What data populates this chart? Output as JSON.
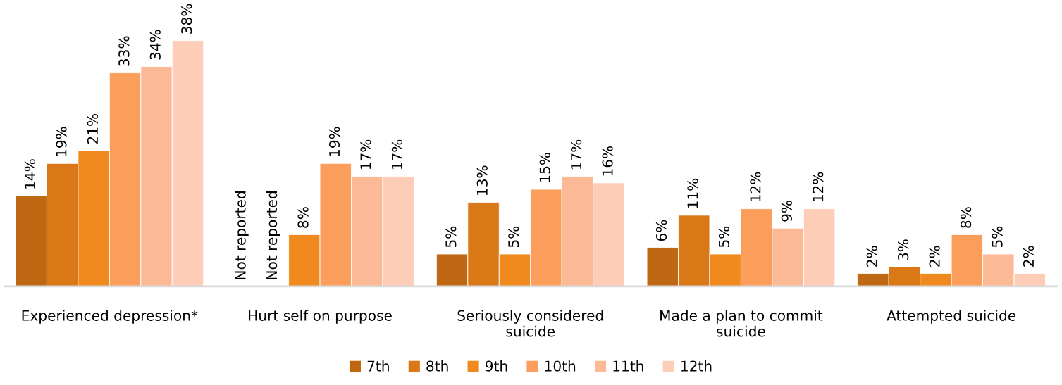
{
  "chart_data": {
    "type": "bar",
    "categories": [
      "Experienced depression*",
      "Hurt self on purpose",
      "Seriously considered\nsuicide",
      "Made a plan to commit\nsuicide",
      "Attempted suicide"
    ],
    "series": [
      {
        "name": "7th",
        "color": "#be6813",
        "values": [
          14,
          null,
          5,
          6,
          2
        ],
        "value_labels": [
          "14%",
          "Not reported",
          "5%",
          "6%",
          "2%"
        ]
      },
      {
        "name": "8th",
        "color": "#da7818",
        "values": [
          19,
          null,
          13,
          11,
          3
        ],
        "value_labels": [
          "19%",
          "Not reported",
          "13%",
          "11%",
          "3%"
        ]
      },
      {
        "name": "9th",
        "color": "#f08a1e",
        "values": [
          21,
          8,
          5,
          5,
          2
        ],
        "value_labels": [
          "21%",
          "8%",
          "5%",
          "5%",
          "2%"
        ]
      },
      {
        "name": "10th",
        "color": "#fb9e5c",
        "values": [
          33,
          19,
          15,
          12,
          8
        ],
        "value_labels": [
          "33%",
          "19%",
          "15%",
          "12%",
          "8%"
        ]
      },
      {
        "name": "11th",
        "color": "#fcb995",
        "values": [
          34,
          17,
          17,
          9,
          5
        ],
        "value_labels": [
          "34%",
          "17%",
          "17%",
          "9%",
          "5%"
        ]
      },
      {
        "name": "12th",
        "color": "#fdcdb8",
        "values": [
          38,
          17,
          16,
          12,
          2
        ],
        "value_labels": [
          "38%",
          "17%",
          "16%",
          "12%",
          "2%"
        ]
      }
    ],
    "legend": "bottom"
  }
}
